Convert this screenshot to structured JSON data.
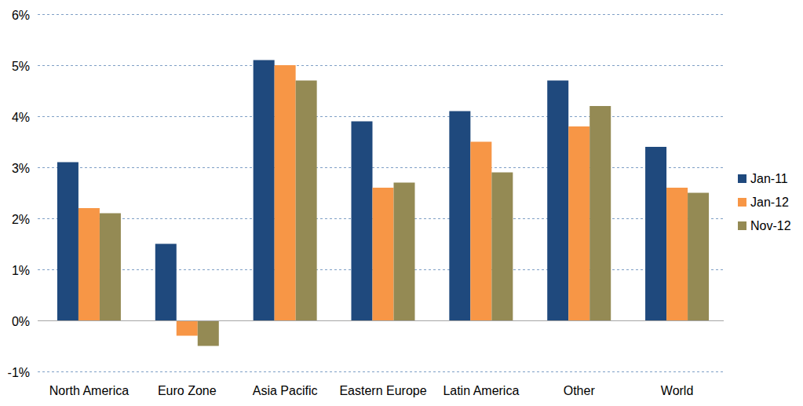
{
  "chart_data": {
    "type": "bar",
    "categories": [
      "North America",
      "Euro Zone",
      "Asia Pacific",
      "Eastern Europe",
      "Latin America",
      "Other",
      "World"
    ],
    "series": [
      {
        "name": "Jan-11",
        "color": "#1f497d",
        "values": [
          3.1,
          1.5,
          5.1,
          3.9,
          4.1,
          4.7,
          3.4
        ]
      },
      {
        "name": "Jan-12",
        "color": "#f79646",
        "values": [
          2.2,
          -0.3,
          5.0,
          2.6,
          3.5,
          3.8,
          2.6
        ]
      },
      {
        "name": "Nov-12",
        "color": "#948a54",
        "values": [
          2.1,
          -0.5,
          4.7,
          2.7,
          2.9,
          4.2,
          2.5
        ]
      }
    ],
    "ylim": [
      -1,
      6
    ],
    "yticks": [
      {
        "value": -1,
        "label": "-1%"
      },
      {
        "value": 0,
        "label": "0%"
      },
      {
        "value": 1,
        "label": "1%"
      },
      {
        "value": 2,
        "label": "2%"
      },
      {
        "value": 3,
        "label": "3%"
      },
      {
        "value": 4,
        "label": "4%"
      },
      {
        "value": 5,
        "label": "5%"
      },
      {
        "value": 6,
        "label": "6%"
      }
    ],
    "grid": true,
    "legend": "right"
  }
}
